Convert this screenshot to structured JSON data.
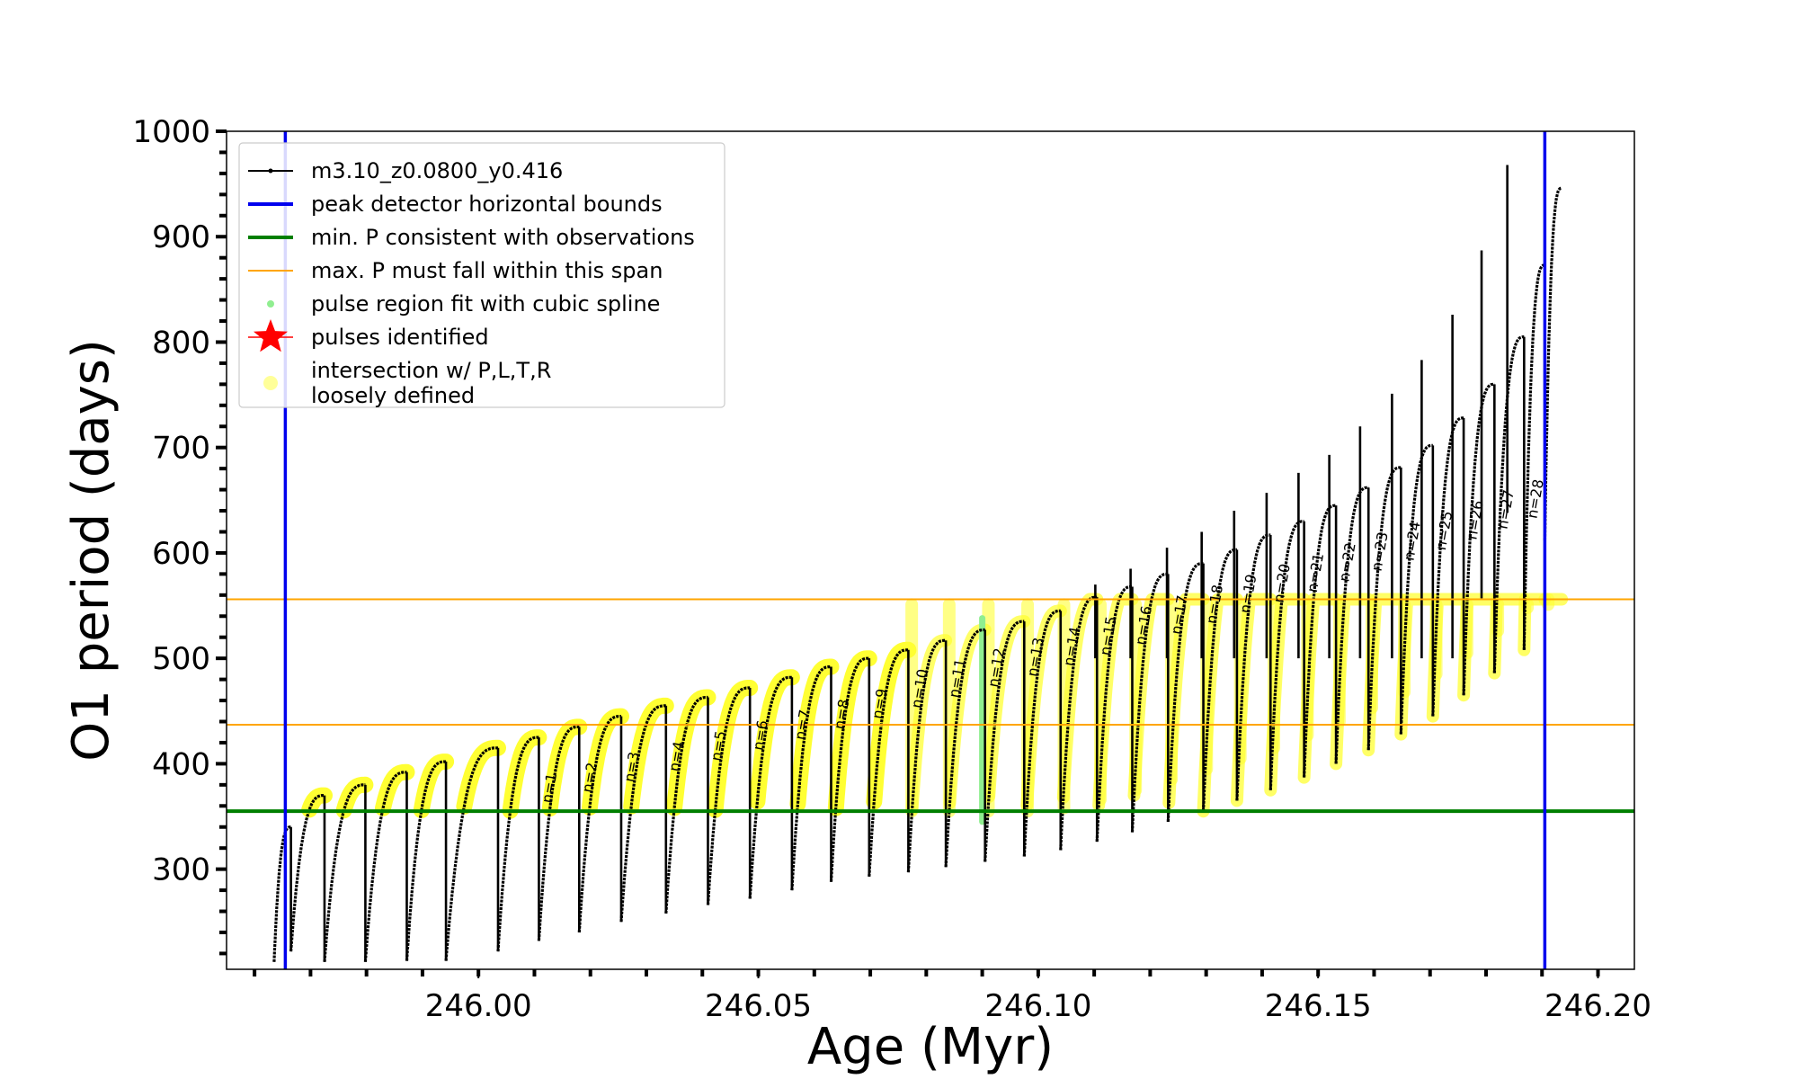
{
  "chart_data": {
    "type": "line",
    "xlabel": "Age (Myr)",
    "ylabel": "O1 period (days)",
    "xlim": [
      245.955,
      246.2065
    ],
    "ylim": [
      205,
      1000
    ],
    "x_ticks": [
      {
        "value": 246.0,
        "label": "246.00"
      },
      {
        "value": 246.05,
        "label": "246.05"
      },
      {
        "value": 246.1,
        "label": "246.10"
      },
      {
        "value": 246.15,
        "label": "246.15"
      },
      {
        "value": 246.2,
        "label": "246.20"
      }
    ],
    "y_ticks": [
      {
        "value": 300,
        "label": "300"
      },
      {
        "value": 400,
        "label": "400"
      },
      {
        "value": 500,
        "label": "500"
      },
      {
        "value": 600,
        "label": "600"
      },
      {
        "value": 700,
        "label": "700"
      },
      {
        "value": 800,
        "label": "800"
      },
      {
        "value": 900,
        "label": "900"
      },
      {
        "value": 1000,
        "label": "1000"
      }
    ],
    "grid": false,
    "legend_position": "top-left",
    "legend": [
      {
        "label": "m3.10_z0.0800_y0.416",
        "color": "#000000",
        "marker": "line-dot"
      },
      {
        "label": "peak detector horizontal bounds",
        "color": "#0000ee",
        "marker": "line"
      },
      {
        "label": "min. P consistent with observations",
        "color": "#007f00",
        "marker": "line"
      },
      {
        "label": "max. P must fall within this span",
        "color": "#ffa500",
        "marker": "thin-line"
      },
      {
        "label": "pulse region fit with cubic spline",
        "color": "#90ee90",
        "marker": "dot"
      },
      {
        "label": "pulses identified",
        "color": "#ff0000",
        "marker": "star"
      },
      {
        "label": "intersection w/ P,L,T,R\nloosely defined",
        "color": "#ffff99",
        "marker": "circle"
      }
    ],
    "vertical_bounds": [
      245.9655,
      246.1905
    ],
    "min_period": 355,
    "max_period_span": [
      437,
      556
    ],
    "spline_region_age": 246.09,
    "series": [
      {
        "name": "m3.10_z0.0800_y0.416",
        "color": "#000000",
        "cycles": [
          {
            "start": 245.9635,
            "end": 245.9665,
            "p_min": 212,
            "p_max": 340
          },
          {
            "start": 245.9665,
            "end": 245.9725,
            "p_min": 222,
            "p_max": 370
          },
          {
            "start": 245.9725,
            "end": 245.9798,
            "p_min": 212,
            "p_max": 380
          },
          {
            "start": 245.9798,
            "end": 245.9872,
            "p_min": 212,
            "p_max": 392
          },
          {
            "start": 245.9872,
            "end": 245.9942,
            "p_min": 213,
            "p_max": 402
          },
          {
            "start": 245.9942,
            "end": 246.0035,
            "p_min": 213,
            "p_max": 415
          },
          {
            "start": 246.0035,
            "end": 246.0108,
            "p_min": 222,
            "p_max": 425
          },
          {
            "start": 246.0108,
            "end": 246.018,
            "p_min": 232,
            "p_max": 435
          },
          {
            "start": 246.018,
            "end": 246.0255,
            "p_min": 240,
            "p_max": 445
          },
          {
            "start": 246.0255,
            "end": 246.0335,
            "p_min": 250,
            "p_max": 455
          },
          {
            "start": 246.0335,
            "end": 246.041,
            "p_min": 258,
            "p_max": 463
          },
          {
            "start": 246.041,
            "end": 246.0485,
            "p_min": 266,
            "p_max": 472
          },
          {
            "start": 246.0485,
            "end": 246.056,
            "p_min": 272,
            "p_max": 482
          },
          {
            "start": 246.056,
            "end": 246.063,
            "p_min": 280,
            "p_max": 492
          },
          {
            "start": 246.063,
            "end": 246.0698,
            "p_min": 288,
            "p_max": 500
          },
          {
            "start": 246.0698,
            "end": 246.0768,
            "p_min": 293,
            "p_max": 508
          },
          {
            "start": 246.0768,
            "end": 246.0835,
            "p_min": 297,
            "p_max": 517
          },
          {
            "start": 246.0835,
            "end": 246.0905,
            "p_min": 302,
            "p_max": 527
          },
          {
            "start": 246.0905,
            "end": 246.0975,
            "p_min": 307,
            "p_max": 535
          },
          {
            "start": 246.0975,
            "end": 246.104,
            "p_min": 312,
            "p_max": 545
          },
          {
            "start": 246.104,
            "end": 246.1105,
            "p_min": 318,
            "p_max": 558
          },
          {
            "start": 246.1105,
            "end": 246.1168,
            "p_min": 326,
            "p_max": 568
          },
          {
            "start": 246.1168,
            "end": 246.1232,
            "p_min": 335,
            "p_max": 580
          },
          {
            "start": 246.1232,
            "end": 246.1295,
            "p_min": 345,
            "p_max": 590
          },
          {
            "start": 246.1295,
            "end": 246.1355,
            "p_min": 355,
            "p_max": 603
          },
          {
            "start": 246.1355,
            "end": 246.1415,
            "p_min": 365,
            "p_max": 617
          },
          {
            "start": 246.1415,
            "end": 246.1475,
            "p_min": 375,
            "p_max": 630
          },
          {
            "start": 246.1475,
            "end": 246.1532,
            "p_min": 387,
            "p_max": 645
          },
          {
            "start": 246.1532,
            "end": 246.159,
            "p_min": 400,
            "p_max": 662
          },
          {
            "start": 246.159,
            "end": 246.1648,
            "p_min": 413,
            "p_max": 681
          },
          {
            "start": 246.1648,
            "end": 246.1705,
            "p_min": 428,
            "p_max": 702
          },
          {
            "start": 246.1705,
            "end": 246.176,
            "p_min": 445,
            "p_max": 728
          },
          {
            "start": 246.176,
            "end": 246.1815,
            "p_min": 465,
            "p_max": 760
          },
          {
            "start": 246.1815,
            "end": 246.1868,
            "p_min": 486,
            "p_max": 805
          },
          {
            "start": 246.1868,
            "end": 246.1905,
            "p_min": 508,
            "p_max": 873
          },
          {
            "start": 246.1905,
            "end": 246.1935,
            "p_min": 612,
            "p_max": 946
          }
        ],
        "spikes": [
          {
            "x": 246.1838,
            "p": 968
          },
          {
            "x": 246.1792,
            "p": 887
          },
          {
            "x": 246.174,
            "p": 826
          },
          {
            "x": 246.1685,
            "p": 783
          },
          {
            "x": 246.1632,
            "p": 751
          },
          {
            "x": 246.1575,
            "p": 720
          },
          {
            "x": 246.152,
            "p": 693
          },
          {
            "x": 246.1465,
            "p": 676
          },
          {
            "x": 246.1408,
            "p": 657
          },
          {
            "x": 246.135,
            "p": 640
          },
          {
            "x": 246.1292,
            "p": 620
          },
          {
            "x": 246.123,
            "p": 605
          },
          {
            "x": 246.1165,
            "p": 585
          },
          {
            "x": 246.1102,
            "p": 570
          }
        ]
      }
    ],
    "pulse_labels": [
      {
        "label": "n=1",
        "x": 246.0108,
        "p": 362
      },
      {
        "label": "n=2",
        "x": 246.018,
        "p": 372
      },
      {
        "label": "n=3",
        "x": 246.0255,
        "p": 382
      },
      {
        "label": "n=4",
        "x": 246.0335,
        "p": 392
      },
      {
        "label": "n=5",
        "x": 246.041,
        "p": 402
      },
      {
        "label": "n=6",
        "x": 246.0485,
        "p": 412
      },
      {
        "label": "n=7",
        "x": 246.056,
        "p": 422
      },
      {
        "label": "n=8",
        "x": 246.063,
        "p": 432
      },
      {
        "label": "n=9",
        "x": 246.0698,
        "p": 442
      },
      {
        "label": "n=10",
        "x": 246.0768,
        "p": 452
      },
      {
        "label": "n=11",
        "x": 246.0835,
        "p": 462
      },
      {
        "label": "n=12",
        "x": 246.0905,
        "p": 472
      },
      {
        "label": "n=13",
        "x": 246.0975,
        "p": 482
      },
      {
        "label": "n=14",
        "x": 246.104,
        "p": 492
      },
      {
        "label": "n=15",
        "x": 246.1105,
        "p": 502
      },
      {
        "label": "n=16",
        "x": 246.1168,
        "p": 512
      },
      {
        "label": "n=17",
        "x": 246.1232,
        "p": 522
      },
      {
        "label": "n=18",
        "x": 246.1295,
        "p": 532
      },
      {
        "label": "n=19",
        "x": 246.1355,
        "p": 542
      },
      {
        "label": "n=20",
        "x": 246.1415,
        "p": 552
      },
      {
        "label": "n=21",
        "x": 246.1475,
        "p": 562
      },
      {
        "label": "n=22",
        "x": 246.1532,
        "p": 572
      },
      {
        "label": "n=23",
        "x": 246.159,
        "p": 582
      },
      {
        "label": "n=24",
        "x": 246.1648,
        "p": 592
      },
      {
        "label": "n=25",
        "x": 246.1705,
        "p": 602
      },
      {
        "label": "n=26",
        "x": 246.176,
        "p": 612
      },
      {
        "label": "n=27",
        "x": 246.1815,
        "p": 622
      },
      {
        "label": "n=28",
        "x": 246.1868,
        "p": 632
      }
    ]
  }
}
